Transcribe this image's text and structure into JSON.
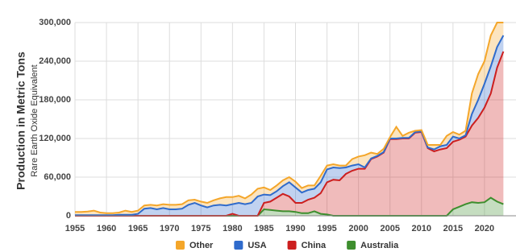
{
  "chart_data": {
    "type": "stacked-area",
    "y_label": "Production in Metric Tons",
    "y_sublabel": "Rare Earth Oxide Equivalent",
    "x": [
      1955,
      1956,
      1957,
      1958,
      1959,
      1960,
      1961,
      1962,
      1963,
      1964,
      1965,
      1966,
      1967,
      1968,
      1969,
      1970,
      1971,
      1972,
      1973,
      1974,
      1975,
      1976,
      1977,
      1978,
      1979,
      1980,
      1981,
      1982,
      1983,
      1984,
      1985,
      1986,
      1987,
      1988,
      1989,
      1990,
      1991,
      1992,
      1993,
      1994,
      1995,
      1996,
      1997,
      1998,
      1999,
      2000,
      2001,
      2002,
      2003,
      2004,
      2005,
      2006,
      2007,
      2008,
      2009,
      2010,
      2011,
      2012,
      2013,
      2014,
      2015,
      2016,
      2017,
      2018,
      2019,
      2020,
      2021,
      2022,
      2023
    ],
    "series": [
      {
        "name": "Australia",
        "color": "#3e8e2e",
        "values": [
          0,
          0,
          0,
          0,
          0,
          0,
          0,
          0,
          0,
          0,
          0,
          0,
          0,
          0,
          0,
          0,
          0,
          0,
          0,
          0,
          0,
          0,
          0,
          0,
          0,
          0,
          0,
          0,
          0,
          0,
          10000,
          9000,
          8000,
          7000,
          7000,
          6000,
          4000,
          4000,
          7000,
          3000,
          2000,
          0,
          0,
          0,
          0,
          0,
          0,
          0,
          0,
          0,
          0,
          0,
          0,
          0,
          0,
          0,
          0,
          0,
          0,
          0,
          10000,
          14000,
          18000,
          21000,
          20000,
          21000,
          28000,
          22000,
          18000
        ]
      },
      {
        "name": "China",
        "color": "#cc1f1f",
        "values": [
          0,
          0,
          0,
          0,
          0,
          0,
          0,
          0,
          0,
          0,
          0,
          0,
          0,
          0,
          0,
          0,
          0,
          0,
          0,
          0,
          0,
          0,
          0,
          0,
          0,
          3000,
          0,
          0,
          0,
          0,
          10000,
          13000,
          20000,
          27000,
          23000,
          14000,
          16000,
          21000,
          21000,
          32000,
          50000,
          56000,
          55000,
          65000,
          70000,
          73000,
          73000,
          88000,
          92000,
          98000,
          119000,
          119000,
          120000,
          120000,
          129000,
          130000,
          105000,
          100000,
          103000,
          105000,
          105000,
          104000,
          105000,
          119000,
          132000,
          147000,
          162000,
          208000,
          237000
        ]
      },
      {
        "name": "USA",
        "color": "#2f6bcc",
        "values": [
          1000,
          1000,
          1000,
          1000,
          1000,
          1000,
          1000,
          1500,
          1500,
          1500,
          3000,
          11000,
          12000,
          10000,
          12000,
          10000,
          10000,
          11000,
          17000,
          20000,
          16000,
          13000,
          16000,
          17000,
          16000,
          15000,
          20000,
          18000,
          20000,
          30000,
          13000,
          10000,
          10000,
          12000,
          22000,
          24000,
          16000,
          15000,
          14000,
          17000,
          20000,
          19000,
          19000,
          10000,
          8000,
          7000,
          2000,
          1000,
          1000,
          1000,
          1000,
          1000,
          1000,
          1000,
          1000,
          1000,
          1000,
          3000,
          5000,
          5000,
          8000,
          2000,
          2000,
          18000,
          28000,
          37000,
          42000,
          32000,
          25000
        ]
      },
      {
        "name": "Other",
        "color": "#f4a62a",
        "values": [
          5000,
          5000,
          5500,
          7000,
          4000,
          3000,
          3000,
          3500,
          6500,
          4500,
          5000,
          5000,
          5000,
          6000,
          6000,
          7000,
          7000,
          7000,
          7000,
          5000,
          6000,
          7000,
          8000,
          10000,
          13000,
          11000,
          11000,
          9000,
          13000,
          12000,
          11000,
          8000,
          9000,
          9000,
          8000,
          9000,
          7000,
          7000,
          5000,
          10000,
          6000,
          5000,
          4000,
          3000,
          10000,
          12000,
          19000,
          9000,
          3000,
          5000,
          2000,
          18000,
          3000,
          8000,
          2000,
          2000,
          4000,
          7000,
          2000,
          14000,
          7000,
          6000,
          7000,
          32000,
          40000,
          35000,
          48000,
          38000,
          20000
        ]
      }
    ],
    "legend_order": [
      "Other",
      "USA",
      "China",
      "Australia"
    ],
    "xlim": [
      1955,
      2025
    ],
    "xticks": [
      1955,
      1960,
      1965,
      1970,
      1975,
      1980,
      1985,
      1990,
      1995,
      2000,
      2005,
      2010,
      2015,
      2020
    ],
    "ylim": [
      0,
      300000
    ],
    "yticks": [
      0,
      {
        "value": 60000,
        "label": "60,000"
      },
      {
        "value": 120000,
        "label": "120,000"
      },
      {
        "value": 180000,
        "label": "180,000"
      },
      {
        "value": 240000,
        "label": "240,000"
      },
      {
        "value": 300000,
        "label": "300,000"
      }
    ],
    "grid": true,
    "legend": "bottom"
  }
}
